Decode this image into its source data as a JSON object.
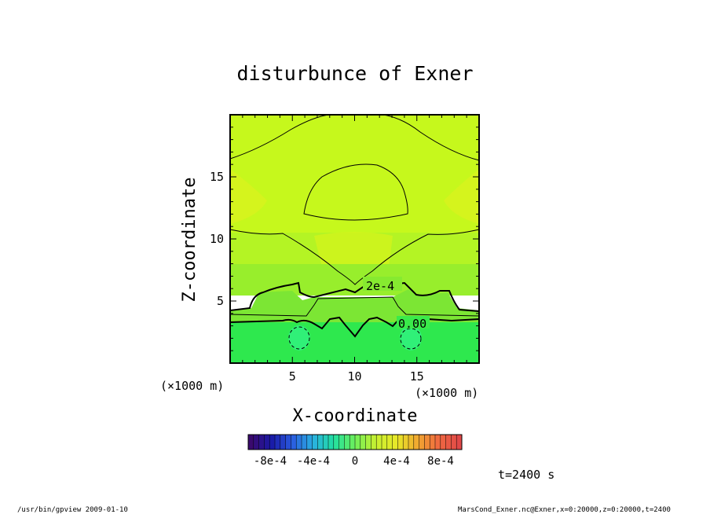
{
  "chart_data": {
    "type": "heatmap",
    "title": "disturbunce of Exner",
    "xlabel": "X-coordinate",
    "ylabel": "Z-coordinate",
    "xlim": [
      0,
      20
    ],
    "ylim": [
      0,
      20
    ],
    "x_ticks": [
      {
        "value": 5,
        "label": "5"
      },
      {
        "value": 10,
        "label": "10"
      },
      {
        "value": 15,
        "label": "15"
      }
    ],
    "y_ticks": [
      {
        "value": 5,
        "label": "5"
      },
      {
        "value": 10,
        "label": "10"
      },
      {
        "value": 15,
        "label": "15"
      }
    ],
    "x_unit_left": "(×1000 m)",
    "x_unit_right": "(×1000 m)",
    "contour_labels": [
      {
        "text": "2e-4",
        "x": 11.5,
        "z": 5.8
      },
      {
        "text": "0.00",
        "x": 14.6,
        "z": 3.0
      }
    ],
    "colorbar": {
      "ticks": [
        "-8e-4",
        "-4e-4",
        "0",
        "4e-4",
        "8e-4"
      ],
      "colors": [
        "#3a0a6e",
        "#1a1aa8",
        "#2a5de0",
        "#2ab0e0",
        "#22e0a0",
        "#6ef05a",
        "#c8f030",
        "#e8e828",
        "#f0a830",
        "#f06a40",
        "#e04848"
      ]
    },
    "time_label": "t=2400 s",
    "fill_colors": {
      "low": "#28e850",
      "min": "#30f078",
      "mid_low": "#7aee32",
      "mid": "#a6f02a",
      "high": "#c8f81c",
      "peak": "#daf21e"
    }
  },
  "footer": {
    "left": "/usr/bin/gpview   2009-01-10",
    "right": "MarsCond_Exner.nc@Exner,x=0:20000,z=0:20000,t=2400"
  }
}
